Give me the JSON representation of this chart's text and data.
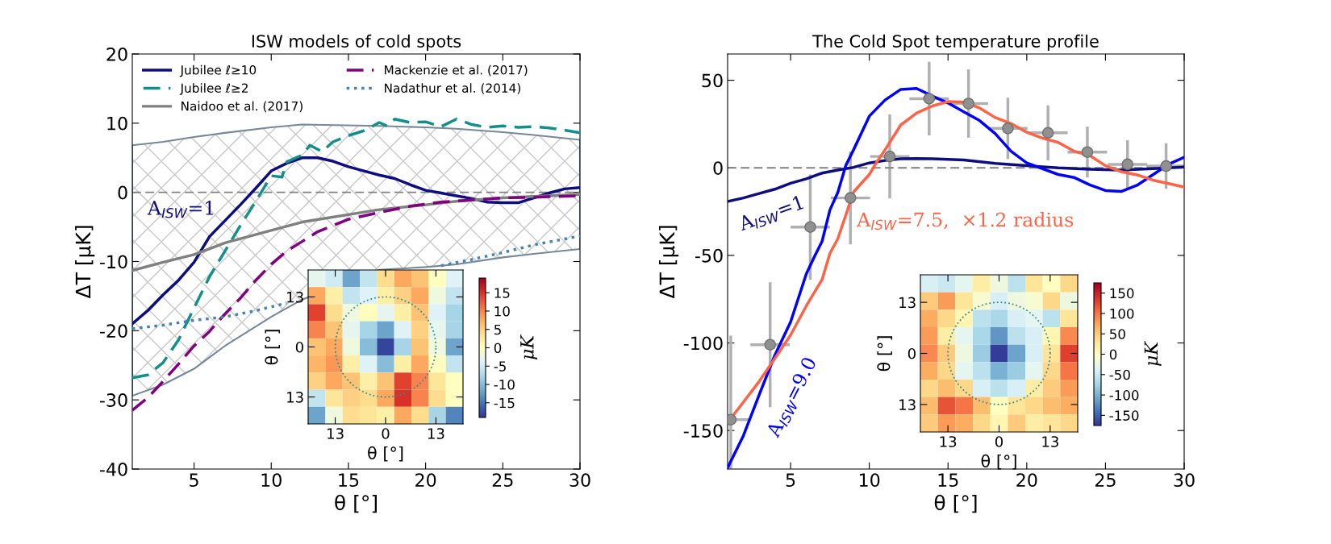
{
  "chart_data": [
    {
      "type": "line",
      "title": "ISW models of cold spots",
      "xlabel": "θ [°]",
      "ylabel": "ΔT [μK]",
      "xlim": [
        1,
        30
      ],
      "ylim": [
        -40,
        20
      ],
      "xticks": [
        5,
        10,
        15,
        20,
        25,
        30
      ],
      "yticks": [
        -40,
        -30,
        -20,
        -10,
        0,
        10,
        20
      ],
      "grid": false,
      "legend": "top left",
      "marker": "none",
      "ref_lines": [
        {
          "axis": "y",
          "value": 0,
          "color": "#808080",
          "line_style": "dashed"
        }
      ],
      "annotations": [
        "A$_{ISW}$=1"
      ],
      "series": [
        {
          "name": "Jubilee ℓ≥10",
          "color": "#0d0d80",
          "line_style": "solid",
          "x": [
            1,
            2,
            3,
            4,
            5,
            6,
            7,
            8,
            9,
            10,
            11,
            12,
            13,
            14,
            15,
            16,
            17,
            18,
            19,
            20,
            21,
            22,
            23,
            24,
            25,
            26,
            27,
            28,
            29,
            30
          ],
          "values": [
            -19,
            -17.1,
            -14.8,
            -12.7,
            -10.1,
            -6.4,
            -4.1,
            -1.8,
            0.6,
            3.1,
            4.2,
            5,
            5,
            4.5,
            3.7,
            3.1,
            2.5,
            2,
            1.1,
            0.3,
            -0.1,
            -0.5,
            -0.9,
            -1.4,
            -1.5,
            -1.5,
            -0.8,
            -0.1,
            0.5,
            0.7
          ]
        },
        {
          "name": "Jubilee ℓ≥2",
          "color": "#138f8a",
          "line_style": "dashed",
          "x": [
            1,
            2,
            3,
            4,
            5,
            6,
            7,
            8,
            9,
            10,
            10.7,
            11,
            12,
            12.5,
            13.3,
            14,
            15,
            16,
            17,
            17.5,
            18,
            19,
            20,
            21,
            22,
            23,
            24,
            25,
            26,
            27,
            28,
            29,
            30
          ],
          "values": [
            -26.8,
            -26.4,
            -24.6,
            -21.3,
            -16.7,
            -12.2,
            -8.5,
            -4.8,
            -1.3,
            2.4,
            2.2,
            4.4,
            5.4,
            6.8,
            5.9,
            7.3,
            8.2,
            8.9,
            10.1,
            9.6,
            10.6,
            10.1,
            10.2,
            9.5,
            10.6,
            9.8,
            9.4,
            9.6,
            9.4,
            9.5,
            9.3,
            9.0,
            8.6
          ]
        },
        {
          "name": "Naidoo et al. (2017)",
          "color": "#808080",
          "line_style": "solid",
          "x": [
            1,
            3,
            5,
            7,
            10,
            12,
            17,
            20,
            22,
            25,
            27,
            30
          ],
          "values": [
            -11.3,
            -10.1,
            -9.0,
            -7.3,
            -5.5,
            -4.3,
            -2.5,
            -1.8,
            -1.3,
            -0.8,
            -0.6,
            -0.3
          ],
          "upper": [
            6.8,
            7.3,
            8.0,
            8.6,
            9.4,
            9.8,
            9.6,
            9.4,
            9.2,
            8.7,
            8.3,
            7.6
          ],
          "lower": [
            -29.4,
            -27.8,
            -25.5,
            -22.2,
            -18,
            -15.5,
            -11.2,
            -10.8,
            -10.4,
            -9.4,
            -8.9,
            -8.2
          ]
        },
        {
          "name": "Mackenzie et al. (2017)",
          "color": "#800080",
          "line_style": "dashed",
          "x": [
            1,
            2,
            3,
            4,
            5,
            6,
            7,
            8,
            9,
            10,
            11,
            12,
            13,
            14,
            15,
            17,
            19,
            21,
            23,
            25,
            27,
            30
          ],
          "values": [
            -31.5,
            -29.7,
            -27.3,
            -24.8,
            -22.2,
            -20.1,
            -17.6,
            -15.3,
            -12.7,
            -10.4,
            -8.5,
            -7.1,
            -5.7,
            -4.8,
            -3.9,
            -2.9,
            -2,
            -1.4,
            -1.1,
            -0.8,
            -0.7,
            -0.5
          ]
        },
        {
          "name": "Nadathur et al. (2014)",
          "color": "#4682b4",
          "line_style": "dotted",
          "x": [
            1,
            3,
            5,
            7,
            9,
            11,
            16,
            21,
            23,
            25,
            27,
            30
          ],
          "values": [
            -19.7,
            -19.2,
            -18.5,
            -18,
            -17.1,
            -16,
            null,
            -10.6,
            -9.7,
            -8.7,
            -7.6,
            -6.3
          ]
        }
      ]
    },
    {
      "type": "heatmap",
      "xlabel": "θ [°]",
      "ylabel": "θ [°]",
      "clabel": "μK",
      "xlim": [
        -20,
        20
      ],
      "ylim": [
        -20,
        20
      ],
      "xticks": [
        {
          "value": -13,
          "label": "13"
        },
        0,
        13
      ],
      "yticks": [
        {
          "value": -13,
          "label": "13"
        },
        0,
        13
      ],
      "clim": [
        -19,
        19
      ],
      "cticks": [
        -15,
        -10,
        -5,
        0,
        5,
        10,
        15
      ],
      "cells": [
        [
          -3,
          -5,
          -12,
          -6,
          4,
          8,
          6,
          0,
          -4
        ],
        [
          8,
          2,
          -6,
          -4,
          2,
          5,
          8,
          -2,
          -6
        ],
        [
          14,
          4,
          -2,
          0,
          -3,
          2,
          6,
          -4,
          -8
        ],
        [
          10,
          6,
          -3,
          -8,
          -12,
          -4,
          5,
          -3,
          -8
        ],
        [
          6,
          8,
          -2,
          -10,
          -18,
          -8,
          6,
          -2,
          -12
        ],
        [
          7,
          9,
          2,
          -4,
          -10,
          2,
          8,
          0,
          -6
        ],
        [
          5,
          8,
          6,
          2,
          6,
          14,
          10,
          3,
          0
        ],
        [
          -6,
          3,
          5,
          4,
          8,
          15,
          10,
          4,
          0
        ],
        [
          -12,
          -2,
          4,
          3,
          2,
          8,
          4,
          -8,
          -14
        ]
      ]
    },
    {
      "type": "line",
      "title": "The Cold Spot temperature profile",
      "xlabel": "θ [°]",
      "ylabel": "ΔT [μK]",
      "xlim": [
        1,
        30
      ],
      "ylim": [
        -172,
        65
      ],
      "xticks": [
        5,
        10,
        15,
        20,
        25,
        30
      ],
      "yticks": [
        -150,
        -100,
        -50,
        0,
        50
      ],
      "grid": false,
      "marker": "none",
      "ref_lines": [
        {
          "axis": "y",
          "value": 0,
          "color": "#808080",
          "line_style": "dashed"
        }
      ],
      "annotations": [
        "A$_{ISW}$=1",
        "A$_{ISW}$=9.0",
        "A$_{ISW}$=7.5,  ×1.2 radius"
      ],
      "series": [
        {
          "color": "#0d0d80",
          "line_style": "solid",
          "x": [
            1,
            2,
            3,
            4,
            5,
            6,
            7,
            8,
            9,
            10,
            11,
            12,
            13,
            14,
            16,
            18,
            20,
            22,
            24,
            26,
            28,
            30
          ],
          "values": [
            -19.2,
            -17.2,
            -14.7,
            -12.2,
            -8.8,
            -6.3,
            -3,
            -1.3,
            0.3,
            2.8,
            4.2,
            5.2,
            5.3,
            5.2,
            4.5,
            2.5,
            1.2,
            0,
            -0.8,
            -1.3,
            -0.5,
            0.5
          ]
        },
        {
          "color": "#0000ff",
          "line_style": "solid",
          "x": [
            1,
            2,
            3,
            4,
            5,
            6,
            6.5,
            7,
            7.5,
            8,
            8.5,
            9,
            10,
            11,
            12,
            13,
            14,
            15,
            16,
            17,
            18,
            19,
            20,
            21,
            22,
            23,
            24,
            25,
            26,
            27,
            28,
            29,
            30
          ],
          "values": [
            -171.3,
            -153,
            -129.7,
            -107,
            -88,
            -60.5,
            -51,
            -42,
            -24,
            -14,
            1.2,
            10.3,
            29.5,
            38.7,
            44.8,
            45.3,
            41,
            37,
            32,
            27,
            19.5,
            9.5,
            2.8,
            -0.5,
            -3.8,
            -5.5,
            -9.7,
            -13,
            -13.5,
            -10,
            -4,
            2,
            6
          ]
        },
        {
          "color": "#ff6347",
          "line_style": "solid",
          "x": [
            1,
            1.3,
            2,
            3,
            4,
            5,
            6,
            7,
            7.5,
            8,
            9,
            10,
            10.5,
            11,
            12,
            13,
            14,
            15,
            16,
            17,
            18,
            19,
            20,
            21,
            22,
            23,
            24,
            25,
            26,
            27,
            28,
            29,
            30
          ],
          "values": [
            -143.8,
            -142,
            -133.8,
            -122,
            -108.8,
            -95.5,
            -78.8,
            -63.8,
            -48.8,
            -40.5,
            -13.8,
            -3.8,
            3.7,
            10.3,
            24.5,
            31.2,
            35.3,
            37.8,
            37.5,
            34.2,
            28.7,
            25.3,
            20.3,
            17,
            14.5,
            9.5,
            7,
            1.2,
            -2.2,
            -4,
            -7,
            -9,
            -11
          ]
        },
        {
          "type": "scatter",
          "color": "#909090",
          "marker": "circle",
          "x": [
            1.2,
            3.7,
            6.25,
            8.8,
            11.3,
            13.8,
            16.3,
            18.8,
            21.35,
            23.85,
            26.4,
            28.85
          ],
          "values": [
            -143.8,
            -101,
            -33.8,
            -17.2,
            6.5,
            39.5,
            36.7,
            22.5,
            20,
            9,
            2,
            1
          ],
          "errors": [
            48,
            35.7,
            30,
            26.5,
            24,
            21,
            19.5,
            17.5,
            15.7,
            14.5,
            13.7,
            13
          ],
          "xerrors": [
            [
              1,
              2.45
            ],
            1.25,
            1.25,
            1.25,
            1.25,
            1.25,
            1.25,
            1.25,
            1.25,
            1.25,
            1.25,
            1.25
          ]
        }
      ]
    },
    {
      "type": "heatmap",
      "xlabel": "θ [°]",
      "ylabel": "θ [°]",
      "clabel": "μK",
      "xlim": [
        -20,
        20
      ],
      "ylim": [
        -20,
        20
      ],
      "xticks": [
        {
          "value": -13,
          "label": "13"
        },
        0,
        13
      ],
      "yticks": [
        {
          "value": -13,
          "label": "13"
        },
        0,
        13
      ],
      "clim": [
        -175,
        175
      ],
      "cticks": [
        -150,
        -100,
        -50,
        0,
        50,
        100,
        150
      ],
      "cells": [
        [
          -40,
          -50,
          -30,
          20,
          -20,
          -60,
          30,
          0,
          40
        ],
        [
          50,
          80,
          30,
          -10,
          -40,
          -20,
          -10,
          40,
          -20
        ],
        [
          70,
          40,
          10,
          -60,
          -70,
          -40,
          -30,
          -60,
          30
        ],
        [
          80,
          20,
          -30,
          -70,
          -120,
          -60,
          -40,
          10,
          90
        ],
        [
          90,
          50,
          -20,
          -80,
          -170,
          -110,
          -40,
          30,
          130
        ],
        [
          70,
          40,
          -30,
          -60,
          -100,
          -80,
          -30,
          40,
          100
        ],
        [
          40,
          60,
          40,
          -40,
          -60,
          -40,
          20,
          50,
          80
        ],
        [
          60,
          120,
          100,
          60,
          0,
          30,
          40,
          60,
          70
        ],
        [
          50,
          80,
          70,
          40,
          10,
          50,
          20,
          30,
          40
        ]
      ]
    }
  ]
}
